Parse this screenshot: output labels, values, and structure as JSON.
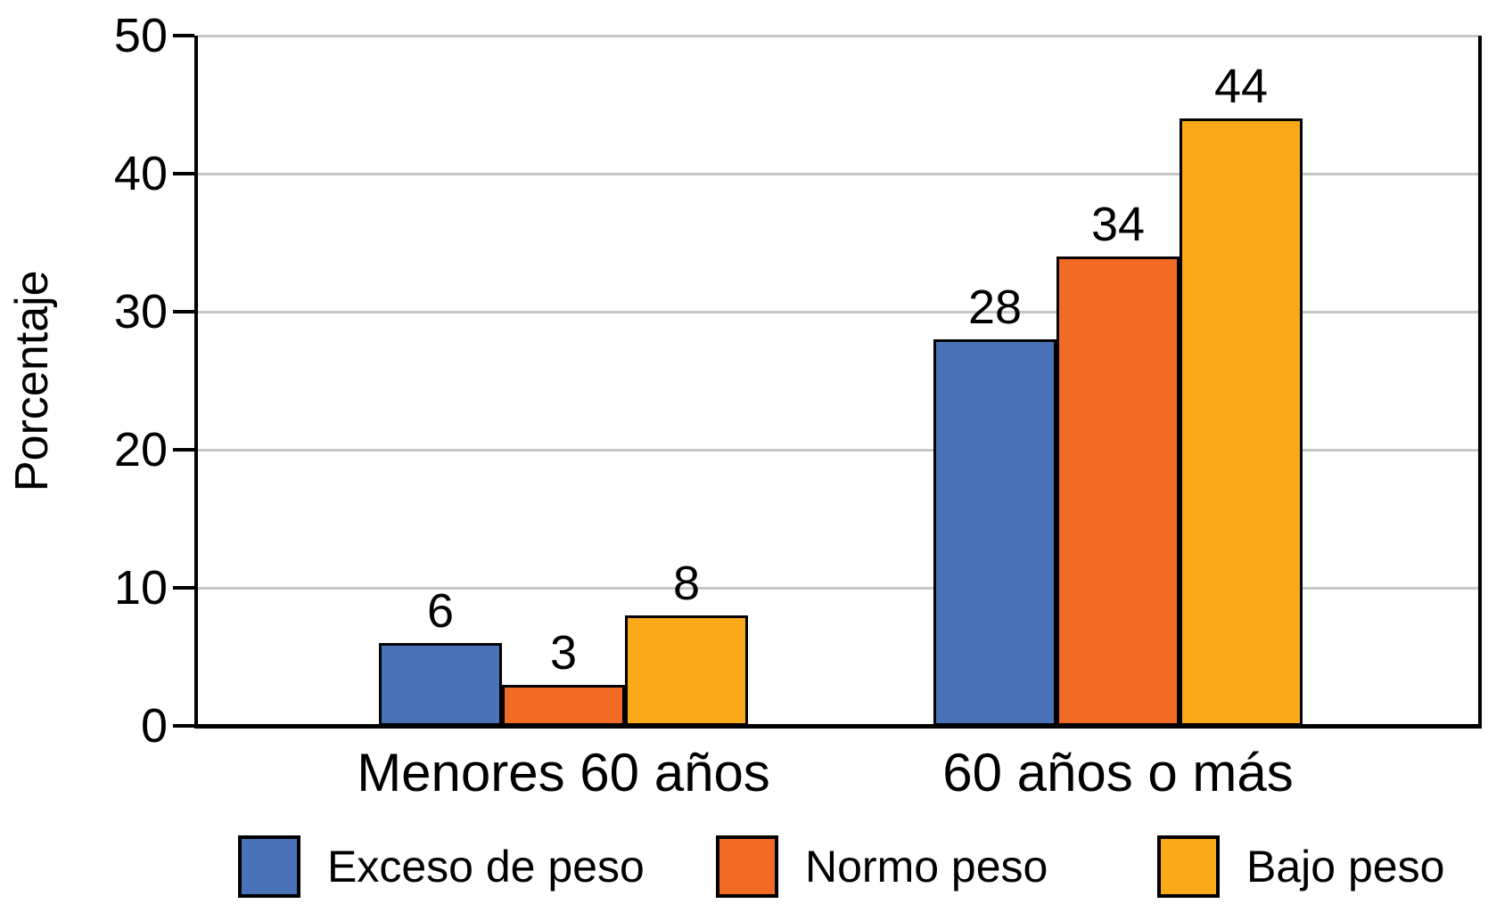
{
  "chart_data": {
    "type": "bar",
    "ylabel": "Porcentaje",
    "xlabel": "",
    "ylim": [
      0,
      50
    ],
    "yticks": [
      0,
      10,
      20,
      30,
      40,
      50
    ],
    "grid": true,
    "value_labels_shown": true,
    "legend_position": "bottom",
    "categories": [
      "Menores 60 años",
      "60 años o más"
    ],
    "series": [
      {
        "name": "Exceso de peso",
        "color": "#4A72B8",
        "values": [
          6,
          28
        ]
      },
      {
        "name": "Normo peso",
        "color": "#F26B24",
        "values": [
          3,
          34
        ]
      },
      {
        "name": "Bajo peso",
        "color": "#FAA919",
        "values": [
          8,
          44
        ]
      }
    ]
  },
  "colors": {
    "axis": "#000000",
    "gridline": "#C6C6C6",
    "background": "#FFFFFF",
    "text": "#000000"
  }
}
